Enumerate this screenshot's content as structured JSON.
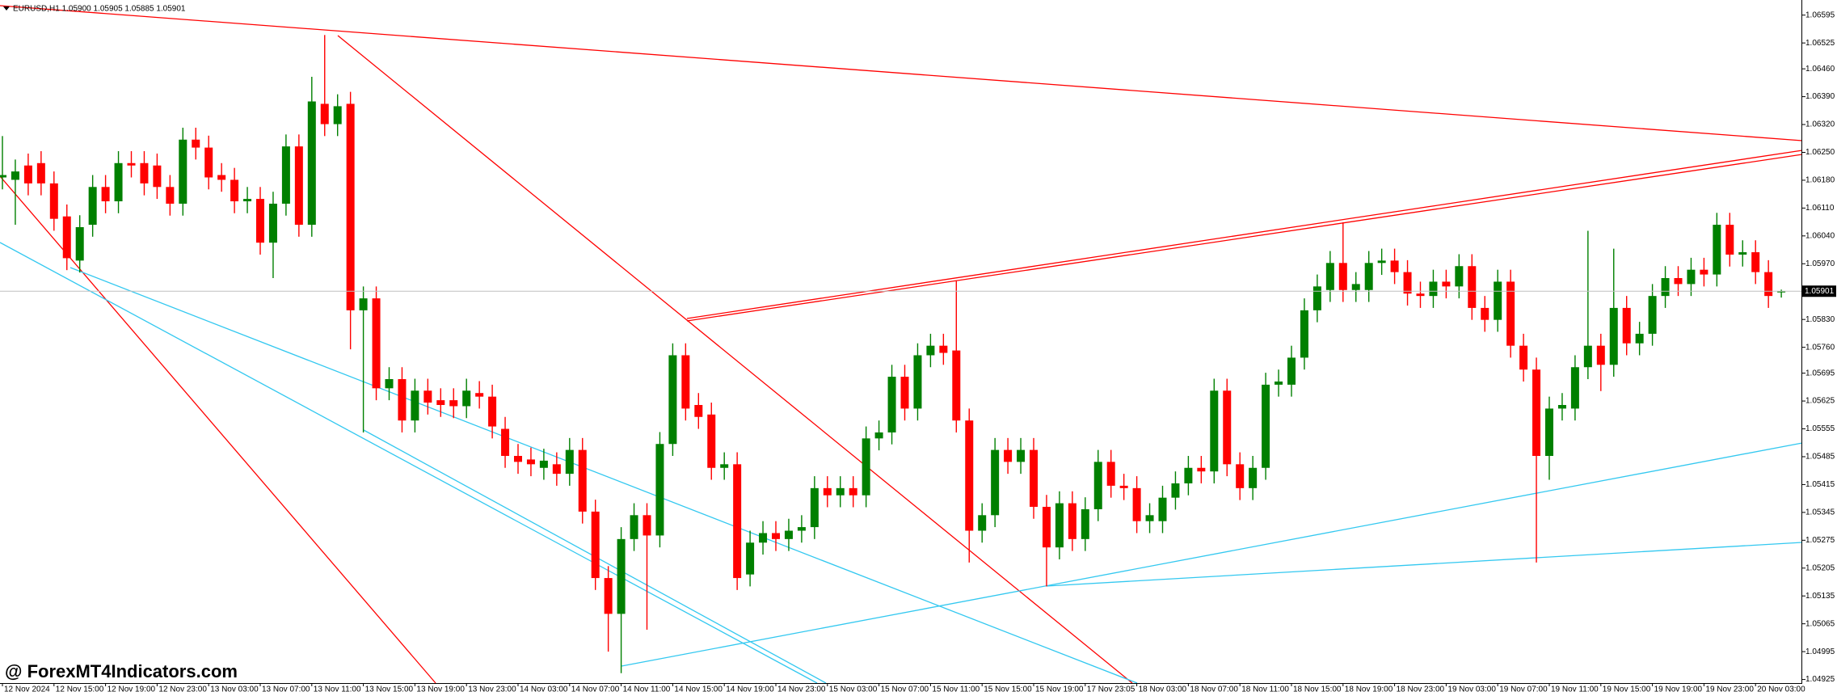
{
  "chart_data": {
    "type": "candlestick",
    "title": "EURUSD,H1  1.05900 1.05905 1.05885 1.05901",
    "watermark": "@ ForexMT4Indicators.com",
    "up_color": "#008000",
    "down_color": "#ff0000",
    "price_line": true,
    "ylim": [
      1.04916,
      1.06633
    ],
    "yticks": [
      1.06595,
      1.06525,
      {
        "value": 1.0646,
        "label": "1.06460"
      },
      {
        "value": 1.0639,
        "label": "1.06390"
      },
      {
        "value": 1.0632,
        "label": "1.06320"
      },
      {
        "value": 1.0625,
        "label": "1.06250"
      },
      {
        "value": 1.0618,
        "label": "1.06180"
      },
      {
        "value": 1.0611,
        "label": "1.06110"
      },
      {
        "value": 1.0604,
        "label": "1.06040"
      },
      {
        "value": 1.0597,
        "label": "1.05970"
      },
      {
        "value": 1.0583,
        "label": "1.05830"
      },
      {
        "value": 1.0576,
        "label": "1.05760"
      },
      1.05695,
      1.05625,
      1.05555,
      1.05485,
      1.05415,
      1.05345,
      1.05275,
      1.05205,
      1.05135,
      1.05065,
      1.04995,
      1.04925
    ],
    "categories": [
      "12 Nov 2024",
      null,
      null,
      null,
      "12 Nov 15:00",
      null,
      null,
      null,
      "12 Nov 19:00",
      null,
      null,
      null,
      "12 Nov 23:00",
      null,
      null,
      null,
      "13 Nov 03:00",
      null,
      null,
      null,
      "13 Nov 07:00",
      null,
      null,
      null,
      "13 Nov 11:00",
      null,
      null,
      null,
      "13 Nov 15:00",
      null,
      null,
      null,
      "13 Nov 19:00",
      null,
      null,
      null,
      "13 Nov 23:00",
      null,
      null,
      null,
      "14 Nov 03:00",
      null,
      null,
      null,
      "14 Nov 07:00",
      null,
      null,
      null,
      "14 Nov 11:00",
      null,
      null,
      null,
      "14 Nov 15:00",
      null,
      null,
      null,
      "14 Nov 19:00",
      null,
      null,
      null,
      "14 Nov 23:00",
      null,
      null,
      null,
      "15 Nov 03:00",
      null,
      null,
      null,
      "15 Nov 07:00",
      null,
      null,
      null,
      "15 Nov 11:00",
      null,
      null,
      null,
      "15 Nov 15:00",
      null,
      null,
      null,
      "15 Nov 19:00",
      null,
      null,
      null,
      "17 Nov 23:05",
      null,
      null,
      null,
      "18 Nov 03:00",
      null,
      null,
      null,
      "18 Nov 07:00",
      null,
      null,
      null,
      "18 Nov 11:00",
      null,
      null,
      null,
      "18 Nov 15:00",
      null,
      null,
      null,
      "18 Nov 19:00",
      null,
      null,
      null,
      "18 Nov 23:00",
      null,
      null,
      null,
      "19 Nov 03:00",
      null,
      null,
      null,
      "19 Nov 07:00",
      null,
      null,
      null,
      "19 Nov 11:00",
      null,
      null,
      null,
      "19 Nov 15:00",
      null,
      null,
      null,
      "19 Nov 19:00",
      null,
      null,
      null,
      "19 Nov 23:00",
      null,
      null,
      null,
      "20 Nov 03:00",
      null,
      null
    ],
    "open": [
      1.06187,
      1.06181,
      1.06217,
      1.06223,
      1.06172,
      1.06089,
      1.05978,
      1.06068,
      1.06163,
      1.06127,
      1.06223,
      1.06223,
      1.06217,
      1.06163,
      1.06121,
      1.06282,
      1.06262,
      1.06193,
      1.06181,
      1.06127,
      1.06133,
      1.06023,
      1.06121,
      1.06265,
      1.06068,
      1.06372,
      1.06321,
      1.06372,
      1.05853,
      1.05883,
      1.05657,
      1.0568,
      1.05576,
      1.05651,
      1.05627,
      1.05627,
      1.05612,
      1.05645,
      1.05636,
      1.05555,
      1.05487,
      1.05478,
      1.05457,
      1.05466,
      1.05442,
      1.05502,
      1.05347,
      1.0518,
      1.0509,
      1.05278,
      1.05338,
      1.05287,
      1.05517,
      1.0574,
      1.05615,
      1.05591,
      1.05457,
      1.05466,
      1.05189,
      1.05269,
      1.05293,
      1.05278,
      1.05299,
      1.05308,
      1.05406,
      1.05388,
      1.05406,
      1.05388,
      1.05531,
      1.05546,
      1.05686,
      1.05606,
      1.0574,
      1.05764,
      1.05752,
      1.05576,
      1.05299,
      1.05338,
      1.05502,
      1.05472,
      1.05502,
      1.05359,
      1.05257,
      1.05368,
      1.05278,
      1.05353,
      1.05472,
      1.05412,
      1.05406,
      1.05323,
      1.05323,
      1.05382,
      1.05418,
      1.05457,
      1.05448,
      1.05651,
      1.05466,
      1.05406,
      1.05457,
      1.05666,
      1.05666,
      1.05734,
      1.05853,
      1.05904,
      1.05972,
      1.05904,
      1.05904,
      1.05972,
      1.05978,
      1.05949,
      1.05895,
      1.05889,
      1.05925,
      1.05913,
      1.05964,
      1.05859,
      1.05829,
      1.05925,
      1.05764,
      1.05704,
      1.05487,
      1.05606,
      1.05606,
      1.0571,
      1.05764,
      1.05716,
      1.05859,
      1.0577,
      1.05794,
      1.05889,
      1.05934,
      1.05919,
      1.05955,
      1.05943,
      1.06068,
      1.05993,
      1.05999,
      1.05949,
      1.059
    ],
    "high": [
      1.06291,
      1.06232,
      1.06247,
      1.06253,
      1.06202,
      1.06119,
      1.06092,
      1.06193,
      1.06193,
      1.06253,
      1.06253,
      1.06253,
      1.06247,
      1.06193,
      1.06312,
      1.06312,
      1.06292,
      1.06223,
      1.06211,
      1.06163,
      1.06163,
      1.06151,
      1.06295,
      1.06295,
      1.0644,
      1.06545,
      1.06396,
      1.06402,
      1.05913,
      1.05913,
      1.0571,
      1.0571,
      1.05681,
      1.05681,
      1.05657,
      1.05657,
      1.05681,
      1.05675,
      1.05666,
      1.05585,
      1.05517,
      1.05508,
      1.05505,
      1.05496,
      1.05532,
      1.05532,
      1.05377,
      1.0521,
      1.05308,
      1.05368,
      1.05368,
      1.05547,
      1.0577,
      1.0577,
      1.05645,
      1.05621,
      1.05496,
      1.05496,
      1.05299,
      1.05323,
      1.05323,
      1.05329,
      1.05338,
      1.05436,
      1.05436,
      1.05436,
      1.05436,
      1.05561,
      1.05576,
      1.05716,
      1.05716,
      1.0577,
      1.05794,
      1.05794,
      1.05928,
      1.05606,
      1.05368,
      1.05532,
      1.05532,
      1.05532,
      1.05532,
      1.05389,
      1.05398,
      1.05398,
      1.05383,
      1.05502,
      1.05502,
      1.05442,
      1.05436,
      1.05368,
      1.05412,
      1.05448,
      1.05487,
      1.05487,
      1.05681,
      1.05681,
      1.05496,
      1.05487,
      1.05696,
      1.05704,
      1.05764,
      1.05883,
      1.05943,
      1.06002,
      1.06074,
      1.05949,
      1.06002,
      1.06008,
      1.06008,
      1.05979,
      1.05925,
      1.05955,
      1.05955,
      1.05994,
      1.05994,
      1.05889,
      1.05955,
      1.05955,
      1.05794,
      1.05734,
      1.05636,
      1.05645,
      1.0574,
      1.06053,
      1.05794,
      1.06008,
      1.05889,
      1.05824,
      1.05919,
      1.05964,
      1.05964,
      1.05985,
      1.05985,
      1.06098,
      1.06098,
      1.06029,
      1.06029,
      1.05979,
      1.05905
    ],
    "low": [
      1.06157,
      1.06068,
      1.06142,
      1.06142,
      1.06053,
      1.05954,
      1.05948,
      1.06038,
      1.06097,
      1.06097,
      1.06187,
      1.06142,
      1.06133,
      1.06091,
      1.06091,
      1.06232,
      1.06157,
      1.06151,
      1.06097,
      1.06097,
      1.05993,
      1.05934,
      1.06091,
      1.06038,
      1.06038,
      1.06291,
      1.06291,
      1.05755,
      1.05546,
      1.05627,
      1.05627,
      1.05546,
      1.05546,
      1.05591,
      1.05585,
      1.05582,
      1.05582,
      1.05606,
      1.05531,
      1.05457,
      1.05442,
      1.05436,
      1.05427,
      1.05412,
      1.05412,
      1.05317,
      1.0515,
      1.04995,
      1.04941,
      1.05248,
      1.0505,
      1.05257,
      1.05487,
      1.05576,
      1.05555,
      1.05427,
      1.05427,
      1.0515,
      1.05159,
      1.05239,
      1.05248,
      1.05248,
      1.05269,
      1.05278,
      1.05358,
      1.05358,
      1.05358,
      1.05358,
      1.05501,
      1.05516,
      1.05576,
      1.05576,
      1.0571,
      1.05716,
      1.05546,
      1.05219,
      1.05269,
      1.05308,
      1.05442,
      1.05442,
      1.05329,
      1.05159,
      1.05227,
      1.05248,
      1.05248,
      1.05323,
      1.05382,
      1.05376,
      1.05293,
      1.05293,
      1.05293,
      1.05352,
      1.05388,
      1.05418,
      1.05418,
      1.05436,
      1.05376,
      1.05376,
      1.05427,
      1.05636,
      1.05636,
      1.05704,
      1.05823,
      1.05874,
      1.05874,
      1.05874,
      1.05874,
      1.05942,
      1.05919,
      1.05865,
      1.05859,
      1.05859,
      1.05883,
      1.05883,
      1.05829,
      1.05799,
      1.05799,
      1.05734,
      1.05674,
      1.05219,
      1.05427,
      1.05576,
      1.05576,
      1.0568,
      1.0565,
      1.05686,
      1.0574,
      1.0574,
      1.05764,
      1.05859,
      1.05889,
      1.05889,
      1.05913,
      1.05913,
      1.05963,
      1.05963,
      1.05919,
      1.05859,
      1.05885
    ],
    "close": [
      1.06193,
      1.06202,
      1.06172,
      1.06172,
      1.06083,
      1.05984,
      1.06062,
      1.06163,
      1.06127,
      1.06223,
      1.06217,
      1.06172,
      1.06163,
      1.06121,
      1.06282,
      1.06262,
      1.06187,
      1.06181,
      1.06127,
      1.06133,
      1.06023,
      1.06121,
      1.06265,
      1.06068,
      1.06378,
      1.06321,
      1.06366,
      1.05853,
      1.05883,
      1.05657,
      1.0568,
      1.05576,
      1.05651,
      1.05621,
      1.05615,
      1.05612,
      1.05651,
      1.05636,
      1.05561,
      1.05487,
      1.05472,
      1.05466,
      1.05475,
      1.05442,
      1.05502,
      1.05347,
      1.0518,
      1.0509,
      1.05278,
      1.05338,
      1.05287,
      1.05517,
      1.0574,
      1.05606,
      1.05585,
      1.05457,
      1.05466,
      1.0518,
      1.05269,
      1.05293,
      1.05278,
      1.05299,
      1.05308,
      1.05406,
      1.05388,
      1.05406,
      1.05388,
      1.05531,
      1.05546,
      1.05686,
      1.05606,
      1.0574,
      1.05764,
      1.05746,
      1.05576,
      1.05299,
      1.05338,
      1.05502,
      1.05472,
      1.05502,
      1.05359,
      1.05257,
      1.05368,
      1.05278,
      1.05353,
      1.05472,
      1.05412,
      1.05406,
      1.05323,
      1.05338,
      1.05382,
      1.05418,
      1.05457,
      1.05448,
      1.05651,
      1.05466,
      1.05406,
      1.05457,
      1.05666,
      1.05674,
      1.05734,
      1.05853,
      1.05913,
      1.05972,
      1.05904,
      1.05919,
      1.05972,
      1.05978,
      1.05949,
      1.05895,
      1.05889,
      1.05925,
      1.05913,
      1.05964,
      1.05859,
      1.05829,
      1.05925,
      1.05764,
      1.05704,
      1.05487,
      1.05606,
      1.05615,
      1.0571,
      1.05764,
      1.05716,
      1.05859,
      1.0577,
      1.05794,
      1.05889,
      1.05934,
      1.05919,
      1.05955,
      1.05943,
      1.06068,
      1.05993,
      1.05999,
      1.05949,
      1.05889,
      1.05901
    ]
  }
}
